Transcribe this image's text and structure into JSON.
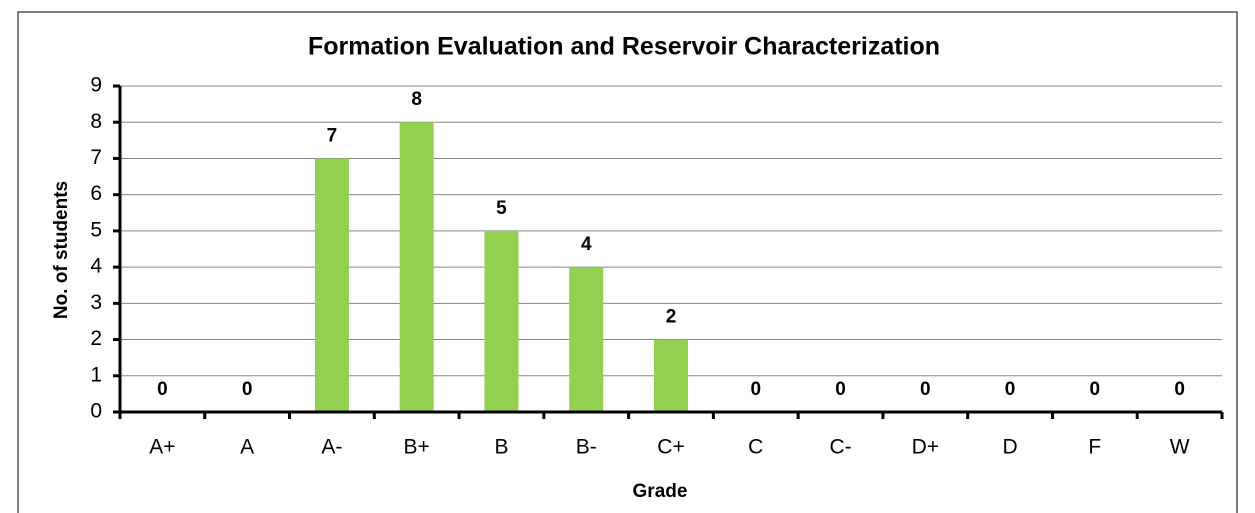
{
  "chart_data": {
    "type": "bar",
    "title": "Formation Evaluation and Reservoir Characterization",
    "x_label": "Grade",
    "y_label": "No. of students",
    "categories": [
      "A+",
      "A",
      "A-",
      "B+",
      "B",
      "B-",
      "C+",
      "C",
      "C-",
      "D+",
      "D",
      "F",
      "W"
    ],
    "values": [
      0,
      0,
      7,
      8,
      5,
      4,
      2,
      0,
      0,
      0,
      0,
      0,
      0
    ],
    "color": "#92d050",
    "ylim": [
      0,
      9
    ],
    "yticks": [
      0,
      1,
      2,
      3,
      4,
      5,
      6,
      7,
      8,
      9
    ],
    "grid": true
  }
}
